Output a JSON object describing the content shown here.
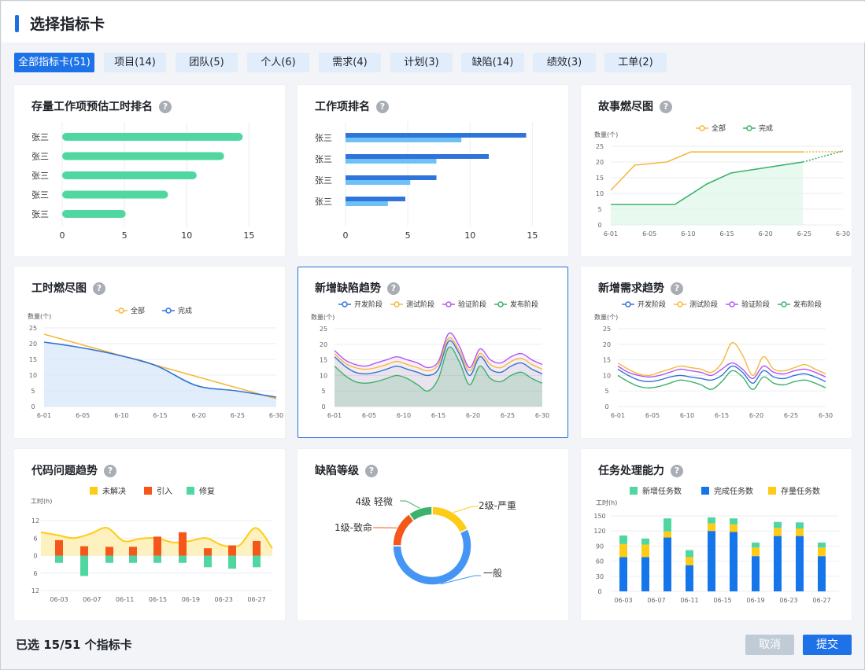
{
  "header": {
    "title": "选择指标卡"
  },
  "tabs": [
    {
      "label": "全部指标卡(51)",
      "active": true
    },
    {
      "label": "项目(14)"
    },
    {
      "label": "团队(5)"
    },
    {
      "label": "个人(6)"
    },
    {
      "label": "需求(4)"
    },
    {
      "label": "计划(3)"
    },
    {
      "label": "缺陷(14)"
    },
    {
      "label": "绩效(3)"
    },
    {
      "label": "工单(2)"
    }
  ],
  "help_glyph": "?",
  "cards": {
    "c1": {
      "title": "存量工作项预估工时排名"
    },
    "c2": {
      "title": "工作项排名"
    },
    "c3": {
      "title": "故事燃尽图"
    },
    "c4": {
      "title": "工时燃尽图"
    },
    "c5": {
      "title": "新增缺陷趋势"
    },
    "c6": {
      "title": "新增需求趋势"
    },
    "c7": {
      "title": "代码问题趋势"
    },
    "c8": {
      "title": "缺陷等级"
    },
    "c9": {
      "title": "任务处理能力"
    }
  },
  "footer": {
    "selected_text": "已选 15/51 个指标卡",
    "cancel_label": "取消",
    "submit_label": "提交"
  },
  "colors": {
    "accent": "#1d72e8",
    "green": "#50d7a1",
    "blue": "#2f74d8",
    "lightblue": "#6ec1f7",
    "orange": "#f5b83d",
    "purple": "#b455f2",
    "teal": "#3cb26b",
    "yellow": "#fecc17",
    "red": "#f5571a"
  },
  "chart_data": [
    {
      "id": "c1",
      "type": "bar",
      "orientation": "horizontal",
      "categories": [
        "张三",
        "张三",
        "张三",
        "张三",
        "张三"
      ],
      "values": [
        14.5,
        13,
        10.8,
        8.5,
        5.1
      ],
      "xticks": [
        "0",
        "5",
        "10",
        "15"
      ],
      "xlim": [
        0,
        17
      ]
    },
    {
      "id": "c2",
      "type": "bar",
      "orientation": "horizontal",
      "categories": [
        "张三",
        "张三",
        "张三",
        "张三"
      ],
      "series": [
        {
          "values": [
            14.5,
            11.5,
            7.3,
            4.8
          ]
        },
        {
          "values": [
            9.3,
            7.3,
            5.2,
            3.4
          ]
        }
      ],
      "xticks": [
        "0",
        "5",
        "10",
        "15"
      ],
      "xlim": [
        0,
        17
      ]
    },
    {
      "id": "c3",
      "type": "line",
      "legend": [
        "全部",
        "完成"
      ],
      "ylabel": "数量(个)",
      "yticks": [
        "0",
        "5",
        "10",
        "15",
        "20",
        "25"
      ],
      "ylim": [
        0,
        25
      ],
      "xticks": [
        "6-01",
        "6-05",
        "6-10",
        "6-15",
        "6-20",
        "6-25",
        "6-30"
      ],
      "series": [
        {
          "name": "全部",
          "x": [
            1,
            4,
            8,
            11,
            25,
            30
          ],
          "y": [
            11,
            19,
            20,
            23.2,
            23.2,
            23.3
          ],
          "dashed_from": 25
        },
        {
          "name": "完成",
          "x": [
            1,
            7,
            9,
            13,
            16,
            25,
            30
          ],
          "y": [
            6.5,
            6.5,
            6.5,
            13,
            16.5,
            20,
            23.5
          ],
          "dashed_from": 25
        }
      ]
    },
    {
      "id": "c4",
      "type": "line",
      "legend": [
        "全部",
        "完成"
      ],
      "ylabel": "数量(个)",
      "yticks": [
        "0",
        "5",
        "10",
        "15",
        "20",
        "25"
      ],
      "ylim": [
        0,
        25
      ],
      "xticks": [
        "6-01",
        "6-05",
        "6-10",
        "6-15",
        "6-20",
        "6-25",
        "6-30"
      ],
      "series": [
        {
          "name": "全部",
          "x": [
            1,
            30
          ],
          "y": [
            23,
            2.5
          ]
        },
        {
          "name": "完成",
          "x": [
            1,
            5,
            10,
            15,
            20,
            25,
            30
          ],
          "y": [
            20.5,
            19,
            16.5,
            13,
            6.7,
            5,
            3
          ]
        }
      ]
    },
    {
      "id": "c5",
      "type": "line",
      "legend": [
        "开发阶段",
        "测试阶段",
        "验证阶段",
        "发布阶段"
      ],
      "ylabel": "数量(个)",
      "yticks": [
        "0",
        "5",
        "10",
        "15",
        "20",
        "25"
      ],
      "ylim": [
        0,
        25
      ],
      "xticks": [
        "6-01",
        "6-05",
        "6-10",
        "6-15",
        "6-20",
        "6-25",
        "6-30"
      ],
      "series": [
        {
          "name": "开发阶段",
          "y": [
            16,
            13,
            11,
            10.5,
            11,
            12,
            13,
            12,
            11,
            10,
            12,
            21,
            17,
            10,
            16,
            12,
            11,
            13,
            14,
            12,
            10.5
          ]
        },
        {
          "name": "测试阶段",
          "y": [
            17,
            14,
            12.5,
            12,
            12.5,
            13.5,
            14.5,
            13.5,
            12.5,
            11.5,
            13.5,
            22,
            18,
            11.5,
            17,
            13.5,
            12.5,
            14.5,
            15.5,
            13.5,
            12
          ]
        },
        {
          "name": "验证阶段",
          "y": [
            18,
            15,
            13.5,
            13,
            14,
            15,
            16,
            15,
            14,
            12.5,
            14.5,
            23.5,
            19.5,
            12.5,
            18.5,
            15,
            14,
            16,
            17,
            15,
            13.5
          ]
        },
        {
          "name": "发布阶段",
          "y": [
            13,
            10,
            8,
            7.5,
            8,
            9,
            10,
            9,
            7,
            5,
            9,
            19,
            14.5,
            7,
            13,
            9,
            8,
            10,
            11,
            9,
            7.5
          ]
        }
      ]
    },
    {
      "id": "c6",
      "type": "line",
      "legend": [
        "开发阶段",
        "测试阶段",
        "验证阶段",
        "发布阶段"
      ],
      "ylabel": "数量(个)",
      "yticks": [
        "0",
        "5",
        "10",
        "15",
        "20",
        "25"
      ],
      "ylim": [
        0,
        25
      ],
      "xticks": [
        "6-01",
        "6-05",
        "6-10",
        "6-15",
        "6-20",
        "6-25",
        "6-30"
      ],
      "series": [
        {
          "name": "开发阶段",
          "y": [
            12,
            10,
            8.5,
            8,
            8.5,
            9.5,
            10,
            9.5,
            9,
            8.5,
            10,
            13,
            11,
            7.5,
            11.5,
            9.5,
            9,
            10,
            10.5,
            9.5,
            8
          ]
        },
        {
          "name": "测试阶段",
          "y": [
            14,
            12,
            10.5,
            10,
            11,
            12,
            13,
            12.5,
            12,
            11,
            14,
            20.5,
            16.5,
            10,
            16,
            12,
            11.5,
            12.5,
            13.5,
            12,
            10.5
          ]
        },
        {
          "name": "验证阶段",
          "y": [
            13,
            11,
            10,
            9.5,
            10,
            11,
            12,
            11.5,
            11,
            10,
            12,
            14,
            12,
            9,
            13,
            11,
            10.5,
            11.5,
            12,
            11,
            9.5
          ]
        },
        {
          "name": "发布阶段",
          "y": [
            10,
            8,
            6.5,
            6,
            6.5,
            7.5,
            8.5,
            8,
            7,
            5.5,
            8,
            11.5,
            9.5,
            5.5,
            9.5,
            7.5,
            7,
            8,
            8.5,
            7.5,
            6
          ]
        }
      ]
    },
    {
      "id": "c7",
      "type": "bar",
      "legend": [
        "未解决",
        "引入",
        "修复"
      ],
      "ylabel": "工时(h)",
      "yticks": [
        "12",
        "6",
        "0",
        "6",
        "12"
      ],
      "ylim": [
        -12,
        12
      ],
      "xticks": [
        "06-03",
        "06-07",
        "06-11",
        "06-15",
        "06-19",
        "06-23",
        "06-27"
      ],
      "introduced": [
        5.3,
        3.2,
        3,
        3,
        6.5,
        8,
        2.5,
        3.5,
        5
      ],
      "fixed": [
        -2.5,
        -7,
        -2.5,
        -2.5,
        -2.5,
        -2.5,
        -4,
        -4.5,
        -4
      ],
      "unresolved": [
        8,
        7,
        6,
        7.5,
        9.5,
        5,
        5.8,
        6,
        4.5,
        5,
        6,
        3.5,
        3.5,
        9.5,
        2.5
      ]
    },
    {
      "id": "c8",
      "type": "pie",
      "donut": true,
      "labels": [
        "2级-严重",
        "一般",
        "1级-致命",
        "4级 轻微"
      ],
      "values": [
        18,
        57,
        15,
        10
      ],
      "colors": [
        "#fecc17",
        "#4596f4",
        "#f5571a",
        "#3cb26b"
      ]
    },
    {
      "id": "c9",
      "type": "bar",
      "stacked": true,
      "legend": [
        "新增任务数",
        "完成任务数",
        "存量任务数"
      ],
      "ylabel": "工时(h)",
      "yticks": [
        "0",
        "30",
        "60",
        "90",
        "120",
        "150"
      ],
      "ylim": [
        0,
        150
      ],
      "xticks": [
        "06-03",
        "06-07",
        "06-11",
        "06-15",
        "06-19",
        "06-23",
        "06-27"
      ],
      "series": [
        {
          "name": "完成任务数",
          "values": [
            68,
            68,
            107,
            52,
            120,
            118,
            70,
            110,
            110,
            70
          ]
        },
        {
          "name": "存量任务数",
          "values": [
            26,
            25,
            12,
            16,
            15,
            15,
            17,
            16,
            15,
            17
          ]
        },
        {
          "name": "新增任务数",
          "values": [
            17,
            12,
            26,
            14,
            12,
            12,
            10,
            12,
            12,
            10
          ]
        }
      ]
    }
  ]
}
